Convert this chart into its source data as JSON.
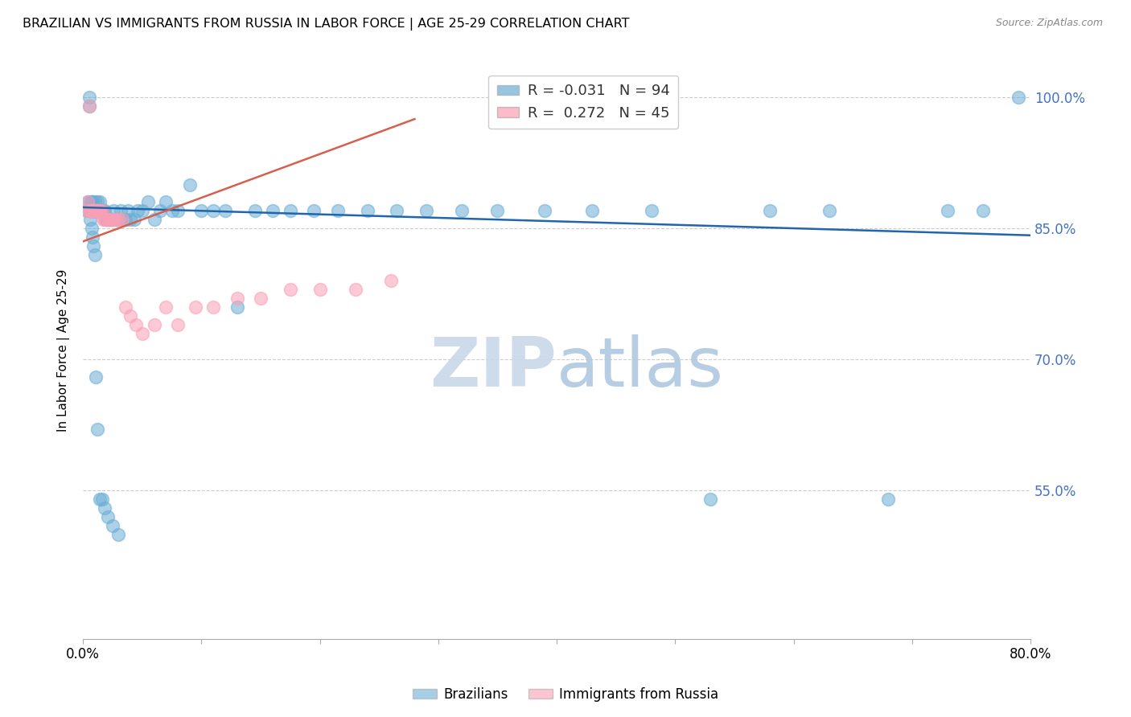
{
  "title": "BRAZILIAN VS IMMIGRANTS FROM RUSSIA IN LABOR FORCE | AGE 25-29 CORRELATION CHART",
  "source": "Source: ZipAtlas.com",
  "ylabel": "In Labor Force | Age 25-29",
  "xlim": [
    0.0,
    0.8
  ],
  "ylim": [
    0.38,
    1.04
  ],
  "yticks": [
    0.55,
    0.7,
    0.85,
    1.0
  ],
  "blue_color": "#6baed6",
  "pink_color": "#fa9fb5",
  "blue_line_color": "#2166ac",
  "pink_line_color": "#d6604d",
  "grid_color": "#cccccc",
  "watermark_zip_color": "#c8d8e8",
  "watermark_atlas_color": "#b0c8e0",
  "r_blue": -0.031,
  "n_blue": 94,
  "r_pink": 0.272,
  "n_pink": 45,
  "blue_scatter_x": [
    0.003,
    0.004,
    0.005,
    0.005,
    0.006,
    0.006,
    0.006,
    0.007,
    0.007,
    0.007,
    0.008,
    0.008,
    0.008,
    0.009,
    0.009,
    0.01,
    0.01,
    0.01,
    0.011,
    0.011,
    0.012,
    0.012,
    0.013,
    0.013,
    0.014,
    0.014,
    0.015,
    0.015,
    0.016,
    0.016,
    0.017,
    0.018,
    0.019,
    0.02,
    0.021,
    0.022,
    0.023,
    0.024,
    0.025,
    0.026,
    0.028,
    0.03,
    0.032,
    0.034,
    0.036,
    0.038,
    0.04,
    0.043,
    0.046,
    0.05,
    0.055,
    0.06,
    0.065,
    0.07,
    0.075,
    0.08,
    0.09,
    0.1,
    0.11,
    0.12,
    0.13,
    0.145,
    0.16,
    0.175,
    0.195,
    0.215,
    0.24,
    0.265,
    0.29,
    0.32,
    0.35,
    0.39,
    0.43,
    0.48,
    0.53,
    0.58,
    0.63,
    0.68,
    0.73,
    0.76,
    0.006,
    0.007,
    0.008,
    0.009,
    0.01,
    0.011,
    0.012,
    0.014,
    0.016,
    0.018,
    0.021,
    0.025,
    0.03,
    0.79
  ],
  "blue_scatter_y": [
    0.87,
    0.88,
    0.99,
    1.0,
    0.88,
    0.87,
    0.87,
    0.88,
    0.87,
    0.87,
    0.88,
    0.87,
    0.87,
    0.87,
    0.87,
    0.87,
    0.88,
    0.87,
    0.87,
    0.87,
    0.88,
    0.87,
    0.87,
    0.87,
    0.88,
    0.87,
    0.87,
    0.87,
    0.87,
    0.87,
    0.87,
    0.87,
    0.86,
    0.86,
    0.86,
    0.86,
    0.86,
    0.86,
    0.86,
    0.87,
    0.86,
    0.86,
    0.87,
    0.86,
    0.86,
    0.87,
    0.86,
    0.86,
    0.87,
    0.87,
    0.88,
    0.86,
    0.87,
    0.88,
    0.87,
    0.87,
    0.9,
    0.87,
    0.87,
    0.87,
    0.76,
    0.87,
    0.87,
    0.87,
    0.87,
    0.87,
    0.87,
    0.87,
    0.87,
    0.87,
    0.87,
    0.87,
    0.87,
    0.87,
    0.54,
    0.87,
    0.87,
    0.54,
    0.87,
    0.87,
    0.86,
    0.85,
    0.84,
    0.83,
    0.82,
    0.68,
    0.62,
    0.54,
    0.54,
    0.53,
    0.52,
    0.51,
    0.5,
    1.0
  ],
  "pink_scatter_x": [
    0.003,
    0.004,
    0.005,
    0.006,
    0.006,
    0.007,
    0.007,
    0.008,
    0.008,
    0.009,
    0.009,
    0.01,
    0.01,
    0.011,
    0.011,
    0.012,
    0.013,
    0.013,
    0.014,
    0.015,
    0.016,
    0.017,
    0.018,
    0.02,
    0.022,
    0.024,
    0.026,
    0.028,
    0.03,
    0.033,
    0.036,
    0.04,
    0.045,
    0.05,
    0.06,
    0.07,
    0.08,
    0.095,
    0.11,
    0.13,
    0.15,
    0.175,
    0.2,
    0.23,
    0.26
  ],
  "pink_scatter_y": [
    0.87,
    0.88,
    0.99,
    0.87,
    0.87,
    0.87,
    0.87,
    0.87,
    0.87,
    0.87,
    0.87,
    0.87,
    0.87,
    0.87,
    0.87,
    0.87,
    0.87,
    0.87,
    0.87,
    0.87,
    0.87,
    0.86,
    0.86,
    0.86,
    0.86,
    0.86,
    0.86,
    0.86,
    0.86,
    0.86,
    0.76,
    0.75,
    0.74,
    0.73,
    0.74,
    0.76,
    0.74,
    0.76,
    0.76,
    0.77,
    0.77,
    0.78,
    0.78,
    0.78,
    0.79
  ],
  "blue_line_x": [
    0.0,
    0.8
  ],
  "blue_line_y": [
    0.874,
    0.842
  ],
  "pink_line_x": [
    0.0,
    0.28
  ],
  "pink_line_y": [
    0.835,
    0.975
  ]
}
